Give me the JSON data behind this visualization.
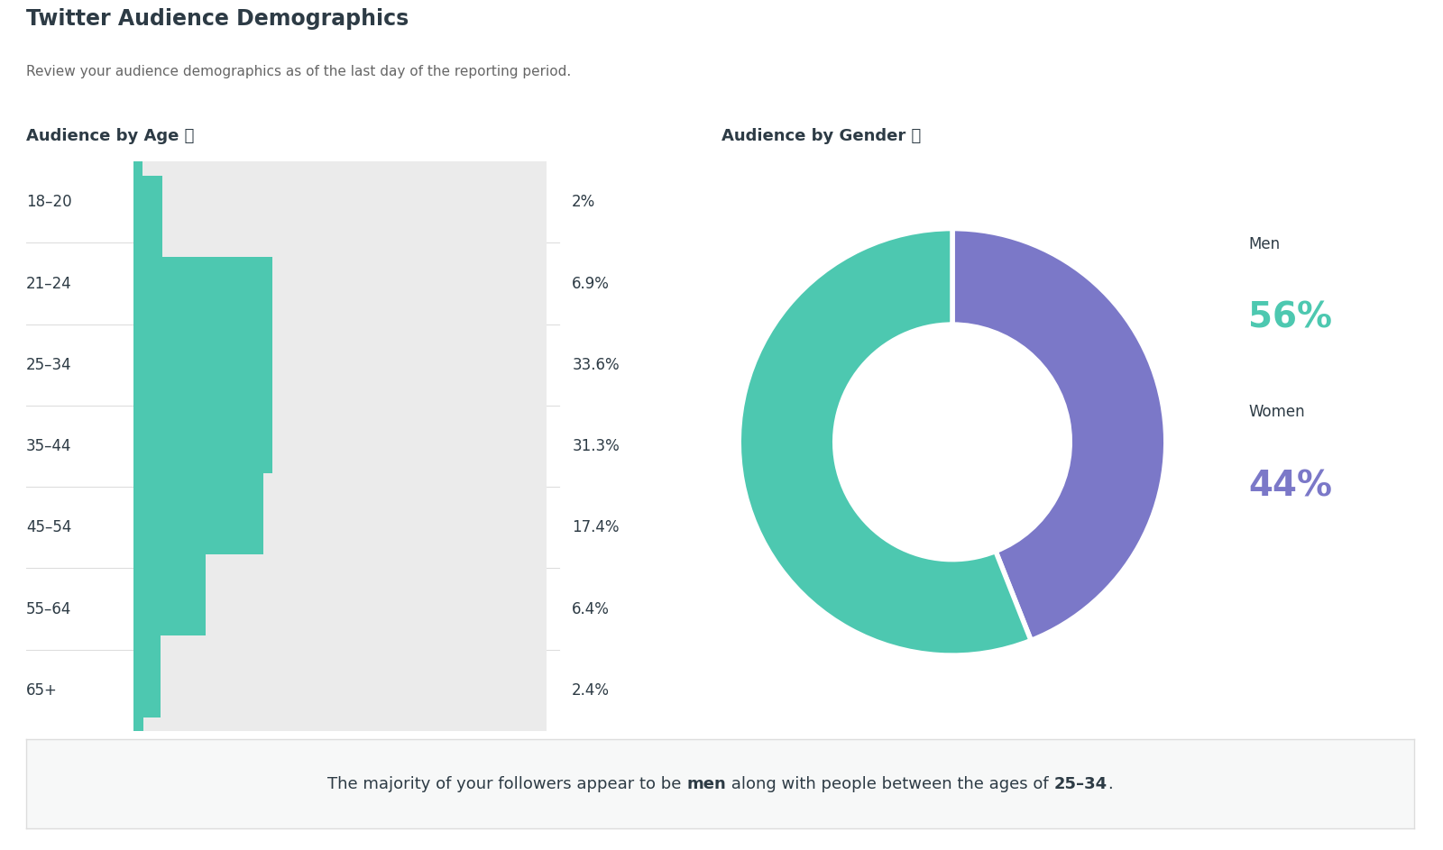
{
  "title": "Twitter Audience Demographics",
  "subtitle": "Review your audience demographics as of the last day of the reporting period.",
  "age_section_title": "Audience by Age ⓘ",
  "gender_section_title": "Audience by Gender ⓘ",
  "age_labels": [
    "18–20",
    "21–24",
    "25–34",
    "35–44",
    "45–54",
    "55–64",
    "65+"
  ],
  "age_values": [
    2.0,
    6.9,
    33.6,
    31.3,
    17.4,
    6.4,
    2.4
  ],
  "age_value_labels": [
    "2%",
    "6.9%",
    "33.6%",
    "31.3%",
    "17.4%",
    "6.4%",
    "2.4%"
  ],
  "bar_color": "#4DC8B0",
  "bar_bg_color": "#EBEBEB",
  "gender_values": [
    56,
    44
  ],
  "gender_labels": [
    "Men",
    "Women"
  ],
  "men_color": "#4DC8B0",
  "women_color": "#7B78C8",
  "men_pct": "56%",
  "women_pct": "44%",
  "bg_color": "#FFFFFF",
  "text_color": "#2D3B45",
  "divider_color": "#DDDDDD",
  "footer_bg_color": "#F7F8F8",
  "title_fontsize": 17,
  "subtitle_fontsize": 11,
  "section_title_fontsize": 13,
  "label_fontsize": 12,
  "value_fontsize": 12,
  "footer_fontsize": 13,
  "pct_fontsize": 28,
  "legend_label_fontsize": 12
}
